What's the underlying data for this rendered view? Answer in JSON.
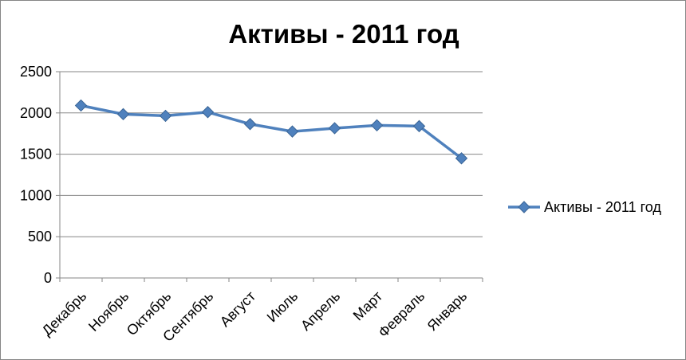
{
  "chart_data": {
    "type": "line",
    "title": "Активы - 2011 год",
    "categories": [
      "Декабрь",
      "Ноябрь",
      "Октябрь",
      "Сентябрь",
      "Август",
      "Июль",
      "Апрель",
      "Март",
      "Февраль",
      "Январь"
    ],
    "series": [
      {
        "name": "Активы - 2011 год",
        "values": [
          2090,
          1985,
          1965,
          2010,
          1865,
          1775,
          1815,
          1850,
          1840,
          1450
        ]
      }
    ],
    "ylim": [
      0,
      2500
    ],
    "yticks": [
      0,
      500,
      1000,
      1500,
      2000,
      2500
    ],
    "grid": true,
    "legend_position": "right",
    "colors": {
      "series": "#4F81BD",
      "grid": "#868686",
      "axis": "#868686"
    }
  }
}
